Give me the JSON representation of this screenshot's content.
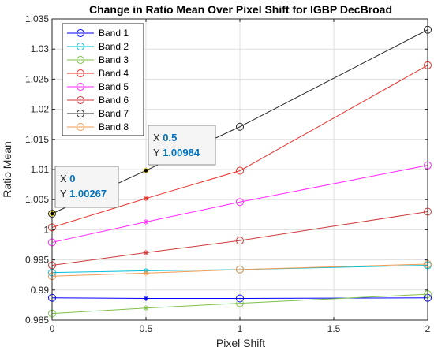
{
  "chart_data": {
    "type": "line",
    "title": "Change in Ratio Mean Over Pixel Shift for IGBP DecBroad",
    "xlabel": "Pixel Shift",
    "ylabel": "Ratio Mean",
    "xlim": [
      0,
      2
    ],
    "ylim": [
      0.985,
      1.035
    ],
    "xticks": [
      0,
      0.5,
      1,
      1.5,
      2
    ],
    "xtick_labels": [
      "0",
      "0.5",
      "1",
      "1.5",
      "2"
    ],
    "yticks": [
      0.985,
      0.99,
      0.995,
      1,
      1.005,
      1.01,
      1.015,
      1.02,
      1.025,
      1.03,
      1.035
    ],
    "ytick_labels": [
      "0.985",
      "0.99",
      "0.995",
      "1",
      "1.005",
      "1.01",
      "1.015",
      "1.02",
      "1.025",
      "1.03",
      "1.035"
    ],
    "grid": true,
    "legend_position": "top-left",
    "x": [
      0,
      0.5,
      1,
      2
    ],
    "series": [
      {
        "name": "Band 1",
        "color": "#0000ff",
        "values": [
          0.9887,
          0.9886,
          0.9886,
          0.9887
        ]
      },
      {
        "name": "Band 2",
        "color": "#00bfd8",
        "values": [
          0.9929,
          0.9932,
          0.9934,
          0.9941
        ]
      },
      {
        "name": "Band 3",
        "color": "#7fc24a",
        "values": [
          0.9861,
          0.987,
          0.9878,
          0.9893
        ]
      },
      {
        "name": "Band 4",
        "color": "#e8302a",
        "values": [
          1.0004,
          1.0052,
          1.0098,
          1.0273
        ]
      },
      {
        "name": "Band 5",
        "color": "#ff26ff",
        "values": [
          0.9979,
          1.0013,
          1.0046,
          1.0107
        ]
      },
      {
        "name": "Band 6",
        "color": "#cc3a3a",
        "values": [
          0.9941,
          0.9962,
          0.9982,
          1.003
        ]
      },
      {
        "name": "Band 7",
        "color": "#262626",
        "values": [
          1.00267,
          1.00984,
          1.0171,
          1.0332
        ]
      },
      {
        "name": "Band 8",
        "color": "#f09b55",
        "values": [
          0.9923,
          0.9928,
          0.9934,
          0.9943
        ]
      }
    ],
    "datatips": [
      {
        "x_label": "X",
        "x_value": "0",
        "y_label": "Y",
        "y_value": "1.00267",
        "x": 0,
        "y": 1.00267,
        "value_color": "#0072bd"
      },
      {
        "x_label": "X",
        "x_value": "0.5",
        "y_label": "Y",
        "y_value": "1.00984",
        "x": 0.5,
        "y": 1.00984,
        "value_color": "#0072bd"
      }
    ]
  }
}
